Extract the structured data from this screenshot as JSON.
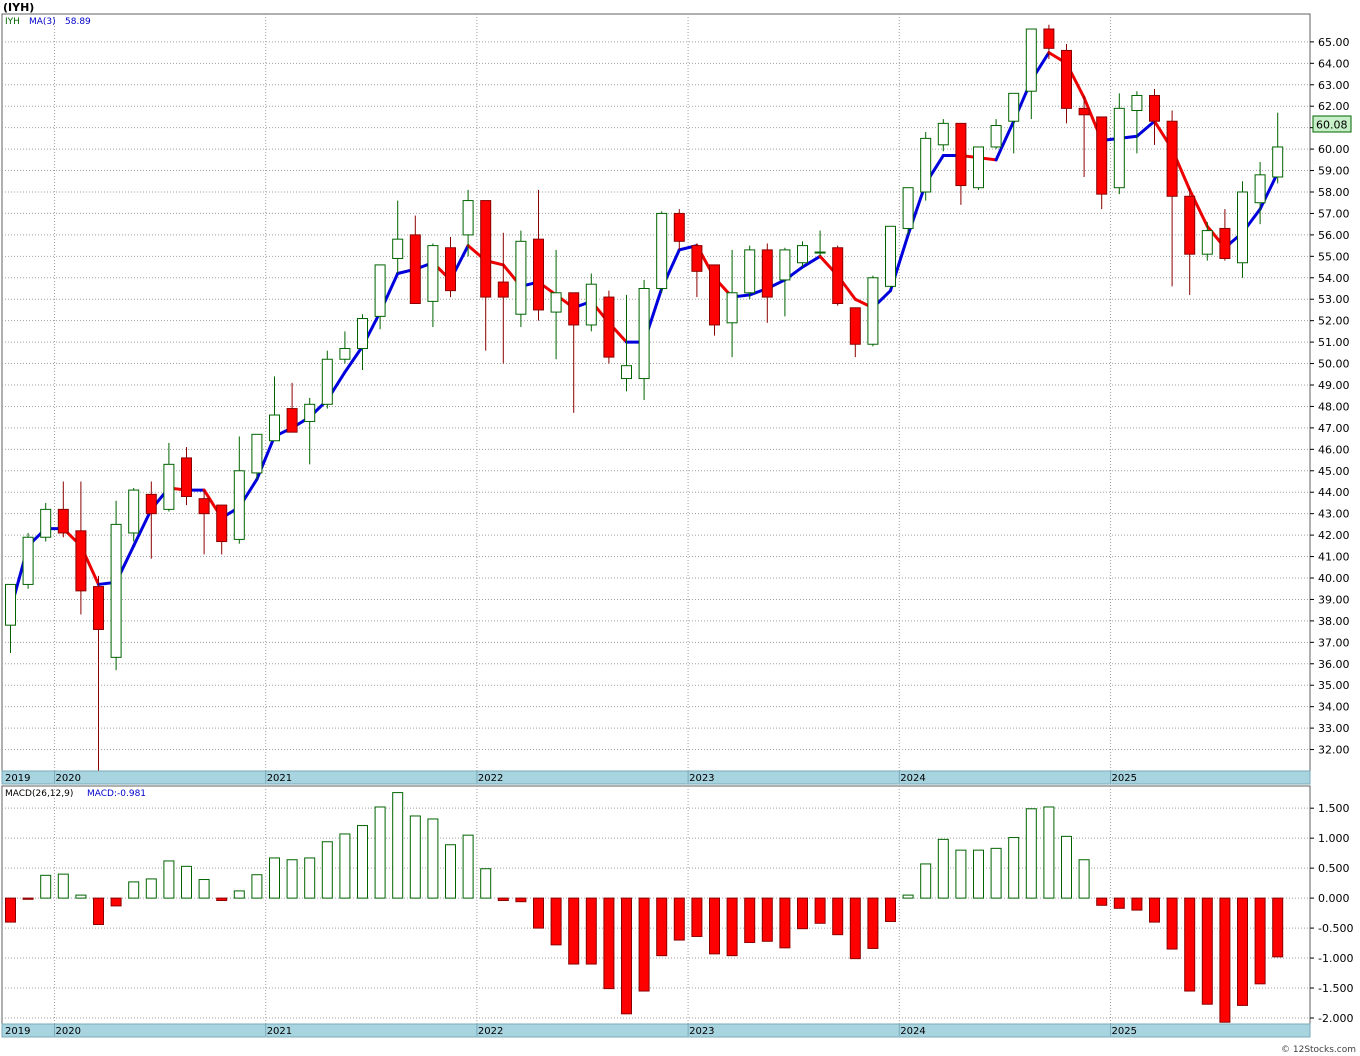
{
  "header": {
    "title": "(IYH)",
    "symbol": "IYH",
    "ma_label": "MA(3)",
    "ma_value": "58.89",
    "macd_label": "MACD(26,12,9)",
    "macd_value": "MACD:-0.981",
    "last_price": "60.08",
    "watermark": "© 12Stocks.com"
  },
  "colors": {
    "up_fill": "#ffffff",
    "up_stroke": "#006400",
    "down_fill": "#ff0000",
    "down_stroke": "#8b0000",
    "ma_up": "#0000dd",
    "ma_down": "#ee0000",
    "date_band": "#a8d4e0",
    "grid": "#a0a0a0",
    "price_tag": "#c8f0c8"
  },
  "chart_data": [
    {
      "type": "candlestick",
      "title": "(IYH)",
      "interval": "monthly",
      "ylim": [
        31,
        66.3
      ],
      "y_ticks": [
        32,
        33,
        34,
        35,
        36,
        37,
        38,
        39,
        40,
        41,
        42,
        43,
        44,
        45,
        46,
        47,
        48,
        49,
        50,
        51,
        52,
        53,
        54,
        55,
        56,
        57,
        58,
        59,
        60,
        61,
        62,
        63,
        64,
        65
      ],
      "x_labels": [
        {
          "label": "2019",
          "index": 0
        },
        {
          "label": "2020",
          "index": 3
        },
        {
          "label": "2021",
          "index": 15
        },
        {
          "label": "2022",
          "index": 27
        },
        {
          "label": "2023",
          "index": 39
        },
        {
          "label": "2024",
          "index": 51
        },
        {
          "label": "2025",
          "index": 63
        }
      ],
      "ohlc": [
        [
          37.8,
          39.7,
          36.5,
          39.7
        ],
        [
          39.7,
          42.1,
          39.5,
          41.9
        ],
        [
          41.9,
          43.5,
          41.7,
          43.2
        ],
        [
          43.2,
          44.5,
          41.9,
          42.1
        ],
        [
          42.2,
          44.5,
          38.3,
          39.4
        ],
        [
          39.6,
          40.1,
          31.0,
          37.6
        ],
        [
          36.3,
          43.6,
          35.7,
          42.5
        ],
        [
          42.1,
          44.2,
          41.7,
          44.1
        ],
        [
          43.9,
          44.5,
          40.9,
          43.0
        ],
        [
          43.2,
          46.3,
          43.1,
          45.3
        ],
        [
          45.6,
          46.1,
          43.4,
          43.8
        ],
        [
          43.7,
          44.1,
          41.1,
          43.0
        ],
        [
          43.4,
          43.4,
          41.1,
          41.7
        ],
        [
          41.8,
          46.6,
          41.6,
          45.0
        ],
        [
          44.9,
          46.6,
          44.6,
          46.7
        ],
        [
          46.4,
          49.4,
          46.4,
          47.6
        ],
        [
          47.9,
          49.1,
          46.8,
          46.8
        ],
        [
          47.3,
          48.4,
          45.3,
          48.1
        ],
        [
          48.1,
          50.6,
          47.9,
          50.2
        ],
        [
          50.2,
          51.5,
          50.0,
          50.7
        ],
        [
          50.7,
          52.3,
          49.7,
          52.1
        ],
        [
          52.2,
          54.5,
          51.6,
          54.6
        ],
        [
          54.9,
          57.6,
          54.2,
          55.8
        ],
        [
          56.0,
          56.9,
          52.8,
          52.8
        ],
        [
          52.9,
          55.6,
          51.7,
          55.5
        ],
        [
          55.4,
          55.9,
          53.1,
          53.4
        ],
        [
          56.0,
          58.1,
          55.0,
          57.6
        ],
        [
          57.6,
          57.6,
          50.6,
          53.1
        ],
        [
          53.8,
          56.1,
          50.0,
          53.1
        ],
        [
          52.3,
          56.2,
          51.7,
          55.7
        ],
        [
          55.8,
          58.1,
          52.0,
          52.5
        ],
        [
          52.4,
          55.3,
          50.2,
          53.3
        ],
        [
          53.3,
          53.3,
          47.7,
          51.8
        ],
        [
          51.8,
          54.2,
          51.5,
          53.7
        ],
        [
          53.1,
          53.4,
          50.0,
          50.3
        ],
        [
          49.3,
          53.2,
          48.7,
          49.9
        ],
        [
          49.3,
          53.9,
          48.3,
          53.5
        ],
        [
          53.5,
          57.1,
          53.3,
          57.0
        ],
        [
          57.0,
          57.2,
          55.3,
          55.7
        ],
        [
          55.5,
          55.6,
          53.1,
          54.3
        ],
        [
          54.6,
          54.6,
          51.3,
          51.8
        ],
        [
          51.9,
          55.3,
          50.3,
          53.3
        ],
        [
          53.3,
          55.5,
          53.0,
          55.3
        ],
        [
          55.3,
          55.6,
          51.9,
          53.1
        ],
        [
          53.9,
          55.4,
          52.2,
          55.3
        ],
        [
          54.7,
          55.7,
          54.5,
          55.5
        ],
        [
          55.2,
          56.2,
          55.0,
          55.2
        ],
        [
          55.4,
          55.5,
          52.7,
          52.8
        ],
        [
          52.6,
          52.6,
          50.3,
          50.9
        ],
        [
          50.9,
          54.1,
          50.8,
          54.0
        ],
        [
          53.6,
          56.4,
          53.5,
          56.4
        ],
        [
          56.3,
          58.2,
          56.0,
          58.2
        ],
        [
          58.0,
          60.8,
          57.6,
          60.5
        ],
        [
          60.2,
          61.4,
          59.9,
          61.2
        ],
        [
          61.2,
          61.2,
          57.4,
          58.3
        ],
        [
          58.2,
          60.1,
          58.1,
          60.1
        ],
        [
          60.1,
          61.4,
          60.0,
          61.1
        ],
        [
          61.3,
          62.5,
          59.8,
          62.6
        ],
        [
          62.7,
          65.5,
          61.4,
          65.6
        ],
        [
          65.6,
          65.8,
          64.2,
          64.7
        ],
        [
          64.6,
          64.9,
          61.2,
          61.9
        ],
        [
          61.9,
          62.5,
          58.7,
          61.6
        ],
        [
          61.5,
          61.5,
          57.2,
          57.9
        ],
        [
          58.2,
          62.6,
          57.9,
          61.9
        ],
        [
          61.8,
          62.7,
          59.8,
          62.5
        ],
        [
          62.5,
          62.8,
          60.2,
          61.3
        ],
        [
          61.3,
          61.8,
          53.6,
          57.8
        ],
        [
          57.8,
          58.2,
          53.2,
          55.1
        ],
        [
          55.1,
          56.6,
          54.8,
          56.2
        ],
        [
          56.3,
          57.2,
          54.8,
          54.9
        ],
        [
          54.7,
          58.5,
          54.0,
          58.0
        ],
        [
          57.5,
          59.4,
          56.5,
          58.8
        ],
        [
          58.7,
          61.7,
          58.4,
          60.1
        ]
      ],
      "ma3": [
        38.5,
        41.5,
        42.3,
        42.3,
        41.5,
        39.7,
        39.8,
        41.5,
        43.2,
        44.2,
        44.1,
        44.1,
        42.8,
        43.3,
        44.6,
        46.6,
        47.0,
        47.5,
        48.3,
        49.6,
        50.8,
        52.4,
        54.2,
        54.4,
        54.7,
        53.9,
        55.5,
        54.8,
        54.6,
        53.6,
        53.8,
        53.2,
        52.6,
        52.9,
        51.9,
        51.0,
        51.0,
        53.5,
        55.3,
        55.5,
        54.0,
        53.1,
        53.2,
        53.5,
        53.9,
        54.5,
        55.0,
        54.1,
        53.0,
        52.6,
        53.4,
        56.0,
        58.4,
        59.7,
        59.7,
        59.6,
        59.5,
        61.3,
        63.2,
        64.5,
        64.0,
        62.4,
        60.4,
        60.5,
        60.6,
        61.3,
        60.0,
        58.1,
        56.4,
        55.4,
        56.1,
        57.2,
        58.9
      ],
      "macd": [
        -0.4,
        -0.02,
        0.38,
        0.4,
        0.05,
        -0.44,
        -0.13,
        0.27,
        0.32,
        0.62,
        0.53,
        0.31,
        -0.04,
        0.12,
        0.39,
        0.67,
        0.64,
        0.67,
        0.94,
        1.07,
        1.21,
        1.52,
        1.76,
        1.37,
        1.32,
        0.89,
        1.05,
        0.49,
        -0.04,
        -0.06,
        -0.5,
        -0.78,
        -1.1,
        -1.1,
        -1.51,
        -1.93,
        -1.55,
        -0.96,
        -0.7,
        -0.64,
        -0.93,
        -0.96,
        -0.74,
        -0.72,
        -0.83,
        -0.51,
        -0.42,
        -0.61,
        -1.01,
        -0.84,
        -0.39,
        0.05,
        0.57,
        0.98,
        0.8,
        0.8,
        0.83,
        1.01,
        1.49,
        1.52,
        1.03,
        0.64,
        -0.12,
        -0.17,
        -0.2,
        -0.4,
        -0.85,
        -1.55,
        -1.77,
        -2.07,
        -1.79,
        -1.43,
        -0.98
      ],
      "macd_ylim": [
        -2.1,
        1.87
      ],
      "macd_ticks": [
        1.5,
        1.0,
        0.5,
        0.0,
        -0.5,
        -1.0,
        -1.5,
        -2.0
      ]
    }
  ]
}
